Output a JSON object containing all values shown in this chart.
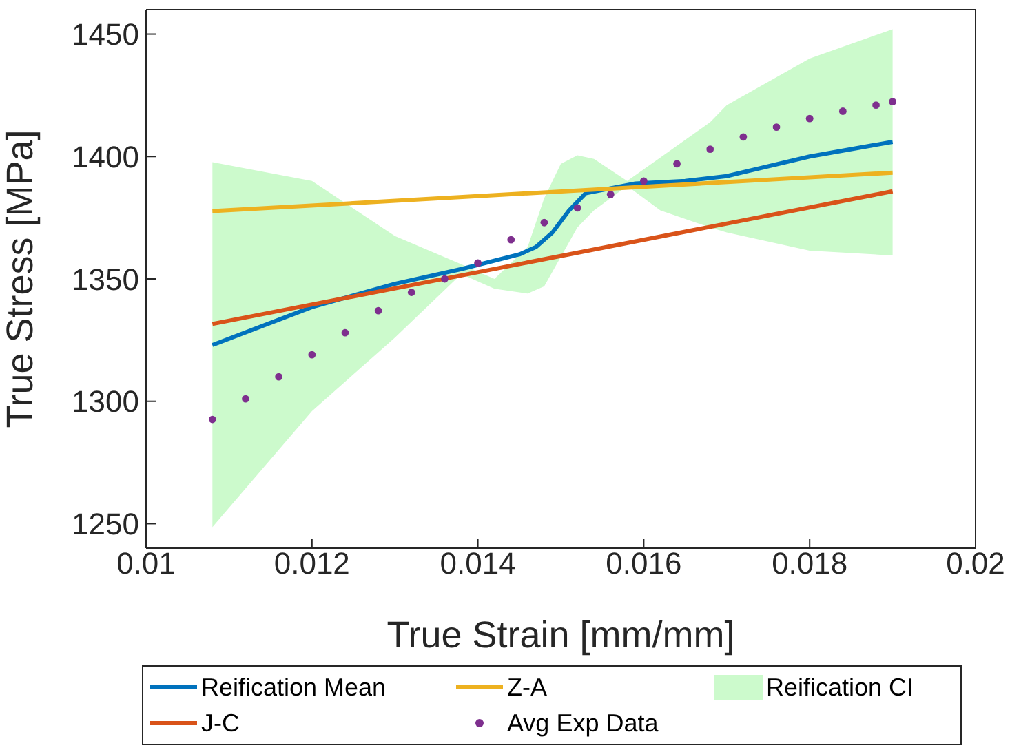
{
  "chart_data": {
    "type": "line",
    "xlabel": "True Strain [mm/mm]",
    "ylabel": "True Stress [MPa]",
    "xlim": [
      0.01,
      0.02
    ],
    "xticks": [
      0.01,
      0.012,
      0.014,
      0.016,
      0.018,
      0.02
    ],
    "ylim": [
      1240,
      1460
    ],
    "yticks": [
      1250,
      1300,
      1350,
      1400,
      1450
    ],
    "grid": false,
    "legend": "bottom",
    "marker": "none",
    "line_style": "solid",
    "series": [
      {
        "name": "Reification CI",
        "type": "area",
        "color": "#ccfacc",
        "x": [
          0.0108,
          0.012,
          0.013,
          0.0138,
          0.0142,
          0.0146,
          0.0148,
          0.015,
          0.0152,
          0.0154,
          0.0158,
          0.0162,
          0.0168,
          0.017,
          0.018,
          0.019
        ],
        "values": [
          null,
          null,
          null,
          null,
          null,
          null,
          null,
          null,
          null,
          null,
          null,
          null,
          null,
          null,
          null,
          null
        ],
        "lower": [
          1248.6,
          1296,
          1326,
          1352,
          1346,
          1344,
          1347,
          1359,
          1371,
          1378,
          1388,
          1378,
          1371,
          1369,
          1361.5,
          1359.6
        ],
        "upper": [
          1397.7,
          1390,
          1367.5,
          1356,
          1350,
          1363,
          1383,
          1397,
          1400.5,
          1399,
          1390,
          1399.6,
          1414,
          1421,
          1440,
          1452
        ]
      },
      {
        "name": "Reification Mean",
        "color": "#0072bd",
        "x": [
          0.0108,
          0.012,
          0.013,
          0.0138,
          0.0145,
          0.0147,
          0.0149,
          0.0151,
          0.0153,
          0.0156,
          0.0159,
          0.0165,
          0.017,
          0.018,
          0.019
        ],
        "values": [
          1323,
          1338.5,
          1348,
          1354,
          1360,
          1363,
          1369,
          1378,
          1385,
          1387,
          1389,
          1390,
          1392,
          1400,
          1406
        ]
      },
      {
        "name": "Z-A",
        "color": "#edb120",
        "x": [
          0.0108,
          0.019
        ],
        "values": [
          1377.7,
          1393.4
        ]
      },
      {
        "name": "J-C",
        "color": "#d95319",
        "x": [
          0.0108,
          0.019
        ],
        "values": [
          1331.6,
          1385.8
        ]
      },
      {
        "name": "Avg Exp Data",
        "type": "scatter",
        "marker": "circle",
        "color": "#7e2f8e",
        "x": [
          0.0108,
          0.0112,
          0.0116,
          0.012,
          0.0124,
          0.0128,
          0.0132,
          0.0136,
          0.014,
          0.0144,
          0.0148,
          0.0152,
          0.0156,
          0.016,
          0.0164,
          0.0168,
          0.0172,
          0.0176,
          0.018,
          0.0184,
          0.0188,
          0.019
        ],
        "values": [
          1292.6,
          1301,
          1310,
          1319,
          1328,
          1337,
          1344.5,
          1350,
          1356.5,
          1366,
          1373,
          1379,
          1384.5,
          1390,
          1397,
          1403,
          1408,
          1412,
          1415.5,
          1418.5,
          1421,
          1422.4
        ]
      }
    ]
  }
}
